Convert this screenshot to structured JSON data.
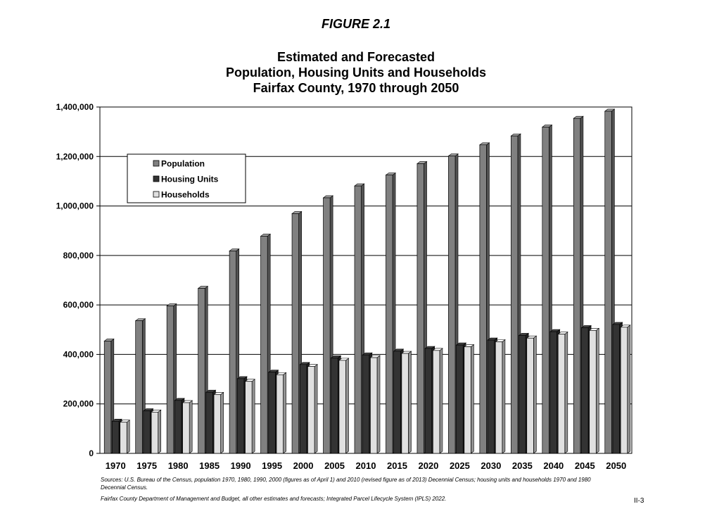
{
  "figure_label": "FIGURE 2.1",
  "title_lines": [
    "Estimated and Forecasted",
    "Population, Housing Units and Households",
    "Fairfax County, 1970 through 2050"
  ],
  "sources": {
    "line1": "Sources:  U.S. Bureau of the Census, population 1970, 1980, 1990, 2000 (figures as of April 1) and 2010 (revised figure as of 2013) Decennial Census; housing units and households 1970 and 1980 Decennial Census.",
    "line2": "Fairfax County Department of Management and Budget, all other estimates and forecasts; Integrated Parcel Lifecycle System (IPLS) 2022."
  },
  "page_number": "II-3",
  "colors": {
    "population": "#808080",
    "housing_units": "#333333",
    "households": "#e0e0e0"
  },
  "chart_data": {
    "type": "bar",
    "categories": [
      "1970",
      "1975",
      "1980",
      "1985",
      "1990",
      "1995",
      "2000",
      "2005",
      "2010",
      "2015",
      "2020",
      "2025",
      "2030",
      "2035",
      "2040",
      "2045",
      "2050"
    ],
    "series": [
      {
        "name": "Population",
        "values": [
          454000,
          536000,
          596000,
          667000,
          818000,
          878000,
          969000,
          1033000,
          1081000,
          1125000,
          1171000,
          1202000,
          1247000,
          1283000,
          1319000,
          1354000,
          1383000
        ]
      },
      {
        "name": "Housing Units",
        "values": [
          130000,
          172000,
          214000,
          247000,
          302000,
          328000,
          359000,
          386000,
          398000,
          413000,
          424000,
          438000,
          458000,
          477000,
          492000,
          508000,
          521000
        ]
      },
      {
        "name": "Households",
        "values": [
          126000,
          167000,
          205000,
          238000,
          291000,
          318000,
          351000,
          376000,
          387000,
          404000,
          416000,
          431000,
          451000,
          466000,
          482000,
          497000,
          510000
        ]
      }
    ],
    "y_ticks": [
      "0",
      "200,000",
      "400,000",
      "600,000",
      "800,000",
      "1,000,000",
      "1,200,000",
      "1,400,000"
    ],
    "ylim": [
      0,
      1400000
    ],
    "grid": true,
    "legend_position": "top-left"
  }
}
